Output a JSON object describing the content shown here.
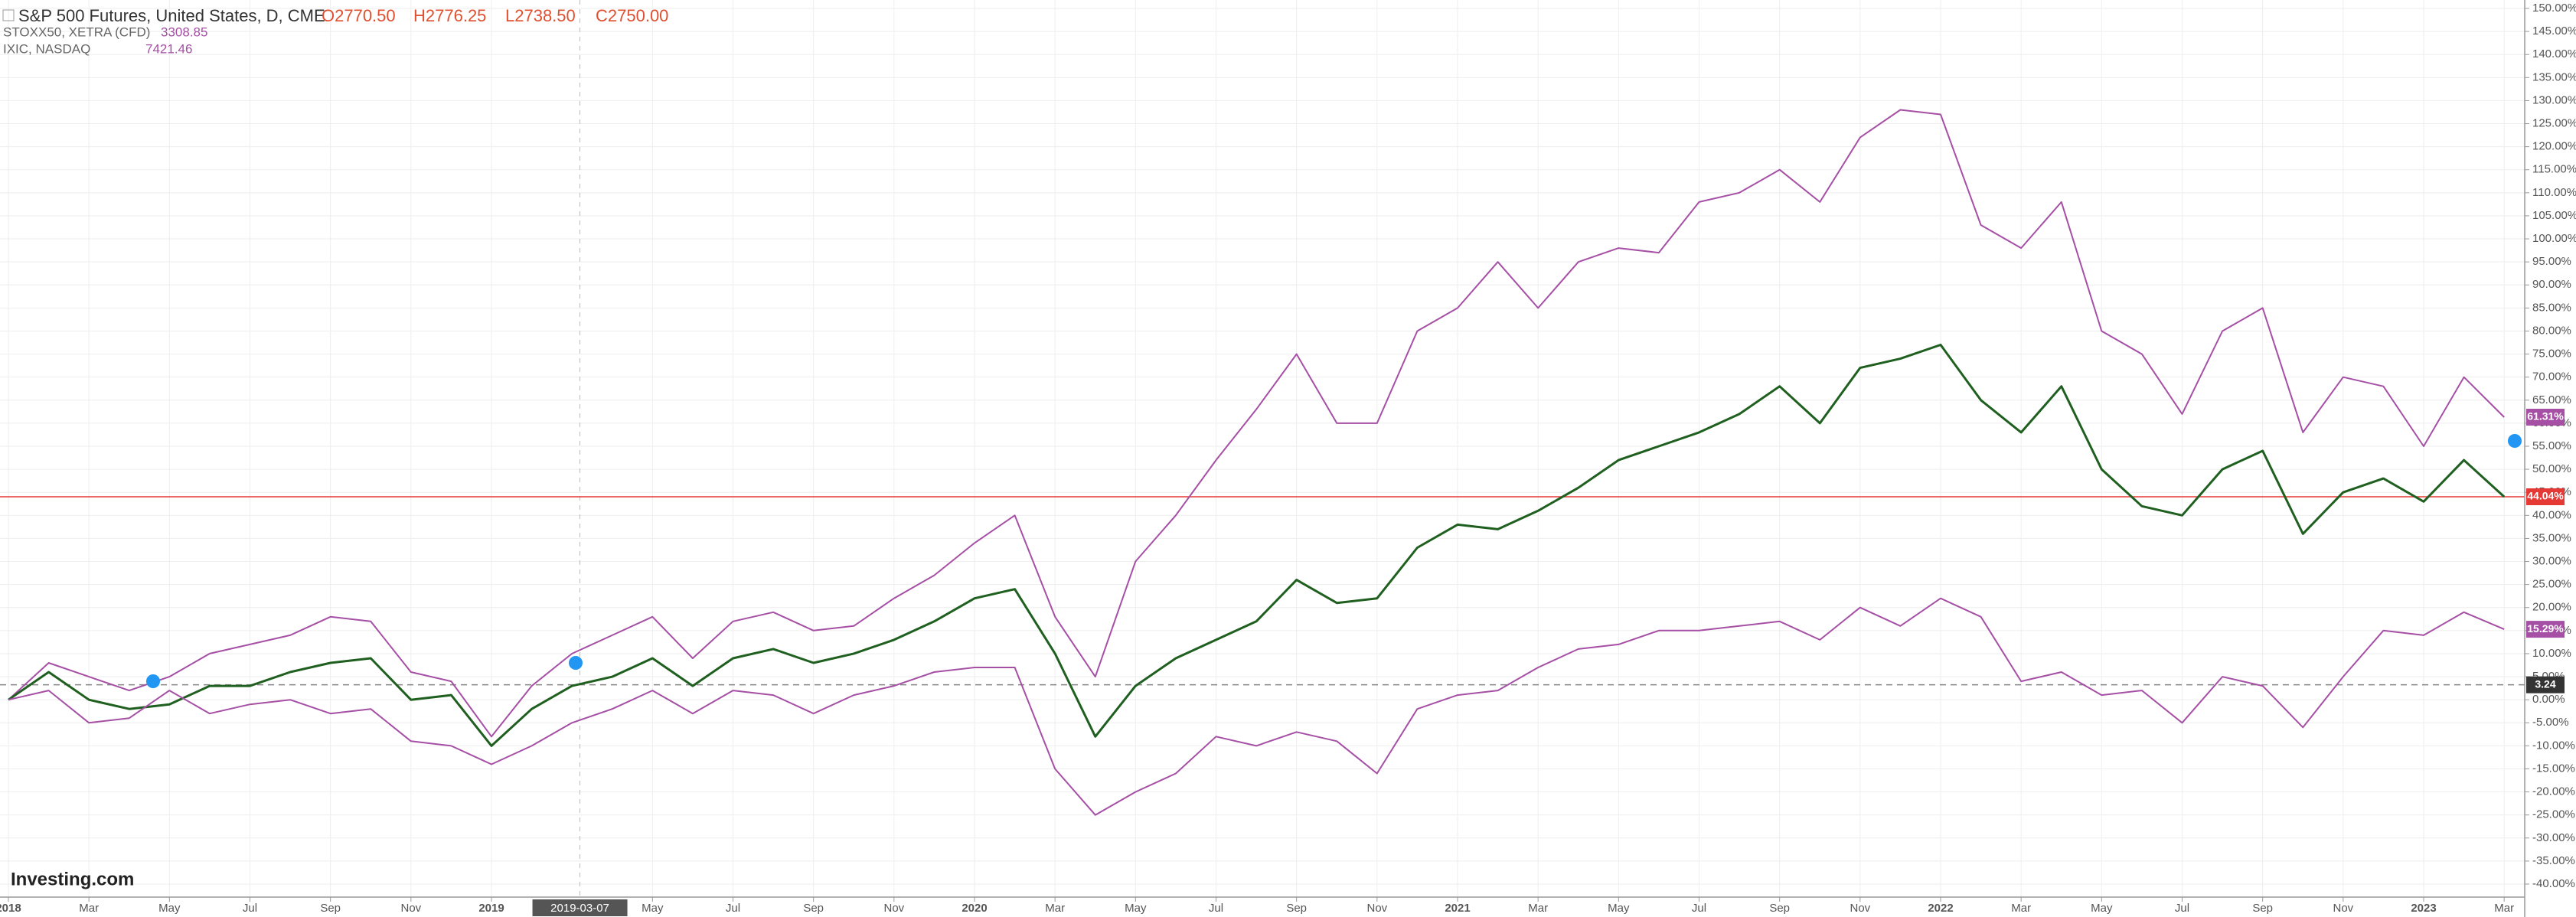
{
  "chart_data": {
    "type": "line",
    "title": "S&P 500 Futures, United States, D, CME",
    "ohlc": [
      "O2770.50",
      "H2776.25",
      "L2738.50",
      "C2750.00"
    ],
    "compare": [
      {
        "name": "STOXX50, XETRA (CFD)",
        "price": "3308.85"
      },
      {
        "name": "IXIC, NASDAQ",
        "price": "7421.46"
      }
    ],
    "logo": "Investing.com",
    "crosshair_x_label": "2019-03-07",
    "x": [
      "2018-01",
      "2018-02",
      "2018-03",
      "2018-04",
      "2018-05",
      "2018-06",
      "2018-07",
      "2018-08",
      "2018-09",
      "2018-10",
      "2018-11",
      "2018-12",
      "2019-01",
      "2019-02",
      "2019-03",
      "2019-04",
      "2019-05",
      "2019-06",
      "2019-07",
      "2019-08",
      "2019-09",
      "2019-10",
      "2019-11",
      "2019-12",
      "2020-01",
      "2020-02",
      "2020-03",
      "2020-04",
      "2020-05",
      "2020-06",
      "2020-07",
      "2020-08",
      "2020-09",
      "2020-10",
      "2020-11",
      "2020-12",
      "2021-01",
      "2021-02",
      "2021-03",
      "2021-04",
      "2021-05",
      "2021-06",
      "2021-07",
      "2021-08",
      "2021-09",
      "2021-10",
      "2021-11",
      "2021-12",
      "2022-01",
      "2022-02",
      "2022-03",
      "2022-04",
      "2022-05",
      "2022-06",
      "2022-07",
      "2022-08",
      "2022-09",
      "2022-10",
      "2022-11",
      "2022-12",
      "2023-01",
      "2023-02",
      "2023-03"
    ],
    "series": [
      {
        "name": "IXIC, NASDAQ",
        "color": "#a54fa5",
        "end_label": "61.31%",
        "values": [
          0,
          8,
          5,
          2,
          5,
          10,
          12,
          14,
          18,
          17,
          6,
          4,
          -8,
          3,
          10,
          14,
          18,
          9,
          17,
          19,
          15,
          16,
          22,
          27,
          34,
          40,
          18,
          5,
          30,
          40,
          52,
          63,
          75,
          60,
          60,
          80,
          85,
          95,
          85,
          95,
          98,
          97,
          108,
          110,
          115,
          108,
          122,
          128,
          127,
          103,
          98,
          108,
          80,
          75,
          62,
          80,
          85,
          58,
          70,
          68,
          55,
          70,
          61.31
        ]
      },
      {
        "name": "S&P 500 Futures, United States, D, CME",
        "color": "#1f5f1f",
        "end_label": "44.04%",
        "values": [
          0,
          6,
          0,
          -2,
          -1,
          3,
          3,
          6,
          8,
          9,
          0,
          1,
          -10,
          -2,
          3,
          5,
          9,
          3,
          9,
          11,
          8,
          10,
          13,
          17,
          22,
          24,
          10,
          -8,
          3,
          9,
          13,
          17,
          26,
          21,
          22,
          33,
          38,
          37,
          41,
          46,
          52,
          55,
          58,
          62,
          68,
          60,
          72,
          74,
          77,
          65,
          58,
          68,
          50,
          42,
          40,
          50,
          54,
          36,
          45,
          48,
          43,
          52,
          44.04
        ]
      },
      {
        "name": "STOXX50, XETRA (CFD)",
        "color": "#a54fa5",
        "end_label": "15.29%",
        "values": [
          0,
          2,
          -5,
          -4,
          2,
          -3,
          -1,
          0,
          -3,
          -2,
          -9,
          -10,
          -14,
          -10,
          -5,
          -2,
          2,
          -3,
          2,
          1,
          -3,
          1,
          3,
          6,
          7,
          7,
          -15,
          -25,
          -20,
          -16,
          -8,
          -10,
          -7,
          -9,
          -16,
          -2,
          1,
          2,
          7,
          11,
          12,
          15,
          15,
          16,
          17,
          13,
          20,
          16,
          22,
          18,
          4,
          6,
          1,
          2,
          -5,
          5,
          3,
          -6,
          5,
          15,
          14,
          19,
          15.29
        ]
      }
    ],
    "price_lines": [
      {
        "value": 44.04,
        "label": "44.04%",
        "color": "#e53935"
      },
      {
        "value": 3.24,
        "label": "3.24",
        "color": "#333333"
      }
    ],
    "ylim": [
      -40,
      150
    ],
    "yticks": [
      {
        "value": -40,
        "label": "-40.00%"
      },
      {
        "value": -35,
        "label": "-35.00%"
      },
      {
        "value": -30,
        "label": "-30.00%"
      },
      {
        "value": -25,
        "label": "-25.00%"
      },
      {
        "value": -20,
        "label": "-20.00%"
      },
      {
        "value": -15,
        "label": "-15.00%"
      },
      {
        "value": -10,
        "label": "-10.00%"
      },
      {
        "value": -5,
        "label": "-5.00%"
      },
      {
        "value": 0,
        "label": "0.00%"
      },
      {
        "value": 5,
        "label": "5.00%"
      },
      {
        "value": 10,
        "label": "10.00%"
      },
      {
        "value": 15,
        "label": "15.00%"
      },
      {
        "value": 20,
        "label": "20.00%"
      },
      {
        "value": 25,
        "label": "25.00%"
      },
      {
        "value": 30,
        "label": "30.00%"
      },
      {
        "value": 35,
        "label": "35.00%"
      },
      {
        "value": 40,
        "label": "40.00%"
      },
      {
        "value": 45,
        "label": "45.00%"
      },
      {
        "value": 50,
        "label": "50.00%"
      },
      {
        "value": 55,
        "label": "55.00%"
      },
      {
        "value": 60,
        "label": "60.00%"
      },
      {
        "value": 65,
        "label": "65.00%"
      },
      {
        "value": 70,
        "label": "70.00%"
      },
      {
        "value": 75,
        "label": "75.00%"
      },
      {
        "value": 80,
        "label": "80.00%"
      },
      {
        "value": 85,
        "label": "85.00%"
      },
      {
        "value": 90,
        "label": "90.00%"
      },
      {
        "value": 95,
        "label": "95.00%"
      },
      {
        "value": 100,
        "label": "100.00%"
      },
      {
        "value": 105,
        "label": "105.00%"
      },
      {
        "value": 110,
        "label": "110.00%"
      },
      {
        "value": 115,
        "label": "115.00%"
      },
      {
        "value": 120,
        "label": "120.00%"
      },
      {
        "value": 125,
        "label": "125.00%"
      },
      {
        "value": 130,
        "label": "130.00%"
      },
      {
        "value": 135,
        "label": "135.00%"
      },
      {
        "value": 140,
        "label": "140.00%"
      },
      {
        "value": 145,
        "label": "145.00%"
      },
      {
        "value": 150,
        "label": "150.00%"
      }
    ],
    "xticks": [
      {
        "value": "2018-01",
        "label": "2018"
      },
      {
        "value": "2018-03",
        "label": "Mar"
      },
      {
        "value": "2018-05",
        "label": "May"
      },
      {
        "value": "2018-07",
        "label": "Jul"
      },
      {
        "value": "2018-09",
        "label": "Sep"
      },
      {
        "value": "2018-11",
        "label": "Nov"
      },
      {
        "value": "2019-01",
        "label": "2019"
      },
      {
        "value": "2019-05",
        "label": "May"
      },
      {
        "value": "2019-07",
        "label": "Jul"
      },
      {
        "value": "2019-09",
        "label": "Sep"
      },
      {
        "value": "2019-11",
        "label": "Nov"
      },
      {
        "value": "2020-01",
        "label": "2020"
      },
      {
        "value": "2020-03",
        "label": "Mar"
      },
      {
        "value": "2020-05",
        "label": "May"
      },
      {
        "value": "2020-07",
        "label": "Jul"
      },
      {
        "value": "2020-09",
        "label": "Sep"
      },
      {
        "value": "2020-11",
        "label": "Nov"
      },
      {
        "value": "2021-01",
        "label": "2021"
      },
      {
        "value": "2021-03",
        "label": "Mar"
      },
      {
        "value": "2021-05",
        "label": "May"
      },
      {
        "value": "2021-07",
        "label": "Jul"
      },
      {
        "value": "2021-09",
        "label": "Sep"
      },
      {
        "value": "2021-11",
        "label": "Nov"
      },
      {
        "value": "2022-01",
        "label": "2022"
      },
      {
        "value": "2022-03",
        "label": "Mar"
      },
      {
        "value": "2022-05",
        "label": "May"
      },
      {
        "value": "2022-07",
        "label": "Jul"
      },
      {
        "value": "2022-09",
        "label": "Sep"
      },
      {
        "value": "2022-11",
        "label": "Nov"
      },
      {
        "value": "2023-01",
        "label": "2023"
      },
      {
        "value": "2023-03",
        "label": "Mar"
      }
    ],
    "grid": true
  }
}
